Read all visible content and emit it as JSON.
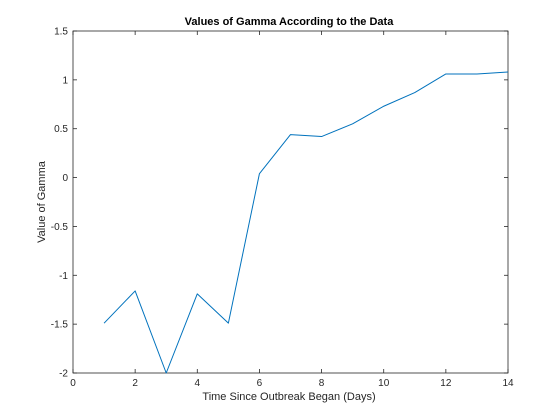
{
  "chart_data": {
    "type": "line",
    "title": "Values of Gamma According to the Data",
    "xlabel": "Time Since Outbreak Began (Days)",
    "ylabel": "Value of Gamma",
    "xlim": [
      0,
      14
    ],
    "ylim": [
      -2,
      1.5
    ],
    "xticks": [
      0,
      2,
      4,
      6,
      8,
      10,
      12,
      14
    ],
    "yticks": [
      -2,
      -1.5,
      -1,
      -0.5,
      0,
      0.5,
      1,
      1.5
    ],
    "grid": false,
    "series": [
      {
        "color": "#0072bd",
        "x": [
          1,
          2,
          3,
          4,
          5,
          6,
          7,
          8,
          9,
          10,
          11,
          12,
          13,
          14
        ],
        "y": [
          -1.49,
          -1.16,
          -2.0,
          -1.19,
          -1.49,
          0.04,
          0.44,
          0.42,
          0.55,
          0.73,
          0.87,
          1.06,
          1.06,
          1.08
        ]
      }
    ]
  },
  "colors": {
    "axis": "#262626",
    "line": "#0072bd",
    "background": "#ffffff"
  }
}
